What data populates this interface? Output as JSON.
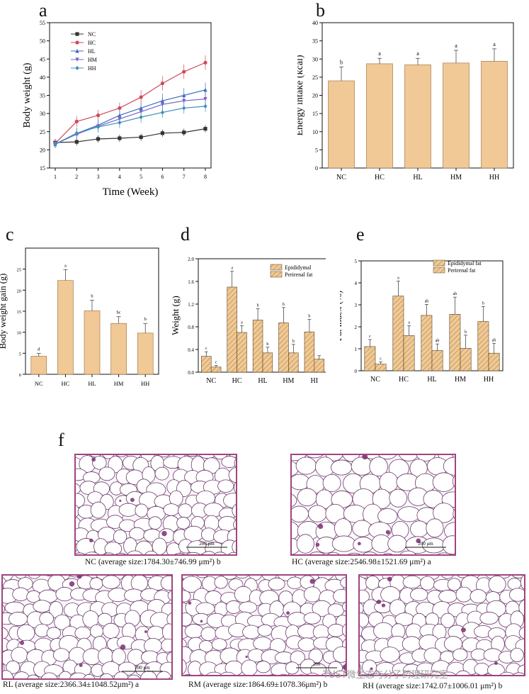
{
  "colors": {
    "bar": "#f0c996",
    "bar_edge": "#9a6a3a",
    "hatch": "#b28a4a",
    "frame": "#a0447e",
    "cell_line": "#6b3a6b",
    "stain": "#7d2c72"
  },
  "panel_labels": {
    "a": "a",
    "b": "b",
    "c": "c",
    "d": "d",
    "e": "e",
    "f": "f"
  },
  "chart_data": [
    {
      "id": "a",
      "type": "line",
      "xlabel": "Time (Week)",
      "ylabel": "Body weight (g)",
      "x": [
        1,
        2,
        3,
        4,
        5,
        6,
        7,
        8
      ],
      "xlim": [
        1,
        8
      ],
      "ylim": [
        15,
        55
      ],
      "yticks": [
        15,
        20,
        25,
        30,
        35,
        40,
        45,
        50,
        55
      ],
      "series": [
        {
          "name": "NC",
          "color": "#333333",
          "marker": "square",
          "values": [
            22,
            22.2,
            23,
            23.2,
            23.5,
            24.6,
            24.8,
            25.8
          ],
          "err": [
            1,
            1,
            1,
            1,
            1,
            1,
            1,
            1
          ]
        },
        {
          "name": "HC",
          "color": "#d1495b",
          "marker": "circle",
          "values": [
            21.8,
            27.8,
            29.5,
            31.5,
            34.5,
            38.3,
            41.5,
            44
          ],
          "err": [
            1,
            1.5,
            1.5,
            1.5,
            2,
            2,
            2,
            2
          ]
        },
        {
          "name": "HL",
          "color": "#3a6fc4",
          "marker": "triangle",
          "values": [
            21.5,
            24.5,
            26.8,
            29.5,
            31.5,
            33.5,
            35,
            36.5
          ],
          "err": [
            1,
            1.5,
            1.5,
            1.5,
            1.5,
            2,
            2,
            2
          ]
        },
        {
          "name": "HM",
          "color": "#7a64c8",
          "marker": "triangle-down",
          "values": [
            21.6,
            24.3,
            26.5,
            28.5,
            30.5,
            32.5,
            33.5,
            34
          ],
          "err": [
            1,
            1.5,
            1.5,
            1.5,
            1.5,
            2,
            2,
            2
          ]
        },
        {
          "name": "HH",
          "color": "#3f8fb8",
          "marker": "diamond",
          "values": [
            21.6,
            24.6,
            26.3,
            27.5,
            29,
            30.3,
            31.5,
            32
          ],
          "err": [
            1,
            1.5,
            1.5,
            1.5,
            1.5,
            1.5,
            1.5,
            1.5
          ]
        }
      ]
    },
    {
      "id": "b",
      "type": "bar",
      "ylabel": "Energy intake (kcal)",
      "categories": [
        "NC",
        "HC",
        "HL",
        "HM",
        "HH"
      ],
      "values": [
        24,
        28.7,
        28.4,
        28.9,
        29.4
      ],
      "err": [
        3.8,
        1.5,
        1.8,
        3.5,
        3.4
      ],
      "letters": [
        "b",
        "a",
        "a",
        "a",
        "a"
      ],
      "ylim": [
        0,
        40
      ],
      "yticks": [
        0,
        5,
        10,
        15,
        20,
        25,
        30,
        35,
        40
      ]
    },
    {
      "id": "c",
      "type": "bar",
      "ylabel": "Body weight gain (g)",
      "categories": [
        "NC",
        "HC",
        "HL",
        "HM",
        "HH"
      ],
      "values": [
        4.3,
        22.3,
        15.1,
        12.1,
        9.8
      ],
      "err": [
        0.7,
        2.6,
        2.5,
        1.6,
        2.3
      ],
      "letters": [
        "d",
        "a",
        "b",
        "bc",
        "b"
      ],
      "ylim": [
        0,
        30
      ],
      "yticks": [
        0,
        5,
        10,
        15,
        20,
        25
      ]
    },
    {
      "id": "d",
      "type": "bar",
      "ylabel": "Weight (g)",
      "categories": [
        "NC",
        "HC",
        "HL",
        "HM",
        "HI"
      ],
      "series": [
        {
          "name": "Epididymal",
          "values": [
            0.28,
            1.5,
            0.92,
            0.87,
            0.71
          ],
          "err": [
            0.08,
            0.28,
            0.2,
            0.27,
            0.22
          ],
          "letters": [
            "c",
            "a",
            "b",
            "b",
            "b"
          ]
        },
        {
          "name": "Perirenal fat",
          "values": [
            0.09,
            0.7,
            0.34,
            0.34,
            0.23
          ],
          "err": [
            0.03,
            0.12,
            0.1,
            0.15,
            0.06
          ],
          "letters": [
            "c",
            "a",
            "b",
            "b",
            ""
          ]
        }
      ],
      "ylim": [
        0,
        2.0
      ],
      "yticks": [
        "0.0",
        "0.4",
        "0.8",
        "1.2",
        "1.6",
        "2.0"
      ]
    },
    {
      "id": "e",
      "type": "bar",
      "ylabel": "Fat index (%)",
      "categories": [
        "NC",
        "HC",
        "HL",
        "HM",
        "HH"
      ],
      "series": [
        {
          "name": "Epididymal fat",
          "values": [
            1.1,
            3.4,
            2.52,
            2.57,
            2.24
          ],
          "err": [
            0.32,
            0.68,
            0.5,
            0.78,
            0.68
          ],
          "letters": [
            "c",
            "a",
            "ab",
            "ab",
            "b"
          ]
        },
        {
          "name": "Perirenal fat",
          "values": [
            0.3,
            1.6,
            0.92,
            1.02,
            0.8
          ],
          "err": [
            0.1,
            0.45,
            0.3,
            0.6,
            0.45
          ],
          "letters": [
            "c",
            "a",
            "ab",
            "b",
            "ab"
          ]
        }
      ],
      "ylim": [
        0,
        5
      ],
      "yticks": [
        0,
        1,
        2,
        3,
        4,
        5
      ]
    }
  ],
  "micrographs": [
    {
      "id": "NC",
      "caption": "NC (average size:1784.30±746.99 μm²) b",
      "scale": "200 μm"
    },
    {
      "id": "HC",
      "caption": "HC (average size:2546.98±1521.69 μm²) a",
      "scale": "200 μm"
    },
    {
      "id": "RL",
      "caption": "RL (average size:2366.34±1048.52μm²) a",
      "scale": "200 μm"
    },
    {
      "id": "RM",
      "caption": "RM (average size:1864.69±1078.36μm²) b",
      "scale": "200"
    },
    {
      "id": "RH",
      "caption": "RH (average size:1742.07±1006.01 μm²) b",
      "scale": ""
    }
  ],
  "watermark": "TUST微生态与分子药理研究室"
}
